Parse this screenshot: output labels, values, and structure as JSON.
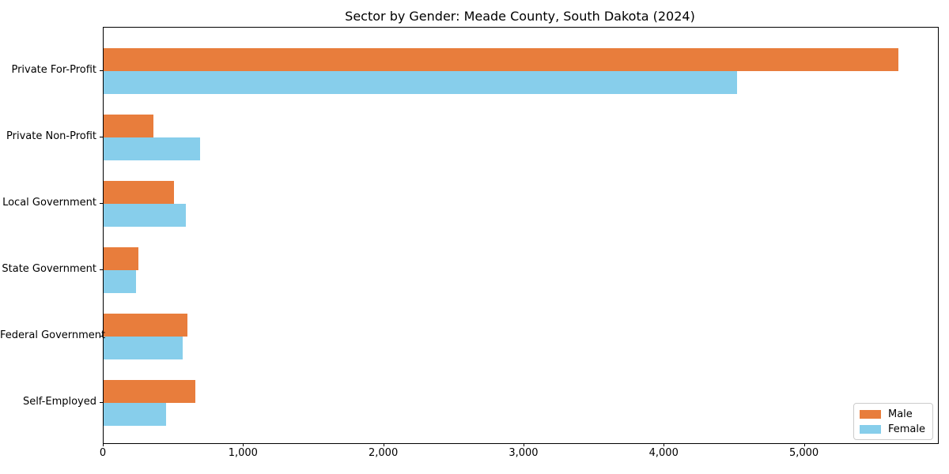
{
  "chart_data": {
    "type": "bar",
    "orientation": "horizontal",
    "title": "Sector by Gender: Meade County, South Dakota (2024)",
    "categories": [
      "Private For-Profit",
      "Private Non-Profit",
      "Local Government",
      "State Government",
      "Federal Government",
      "Self-Employed"
    ],
    "series": [
      {
        "name": "Male",
        "color": "#e87d3c",
        "values": [
          5670,
          355,
          500,
          250,
          600,
          655
        ]
      },
      {
        "name": "Female",
        "color": "#87ceeb",
        "values": [
          4515,
          690,
          585,
          230,
          565,
          445
        ]
      }
    ],
    "xlabel": "",
    "ylabel": "",
    "xlim": [
      0,
      5950
    ],
    "x_ticks": [
      0,
      1000,
      2000,
      3000,
      4000,
      5000
    ],
    "x_tick_labels": [
      "0",
      "1,000",
      "2,000",
      "3,000",
      "4,000",
      "5,000"
    ],
    "grid": false,
    "legend_position": "lower right",
    "colors": {
      "axis": "#000000",
      "text": "#000000",
      "legend_border": "#cccccc",
      "background": "#ffffff"
    }
  }
}
